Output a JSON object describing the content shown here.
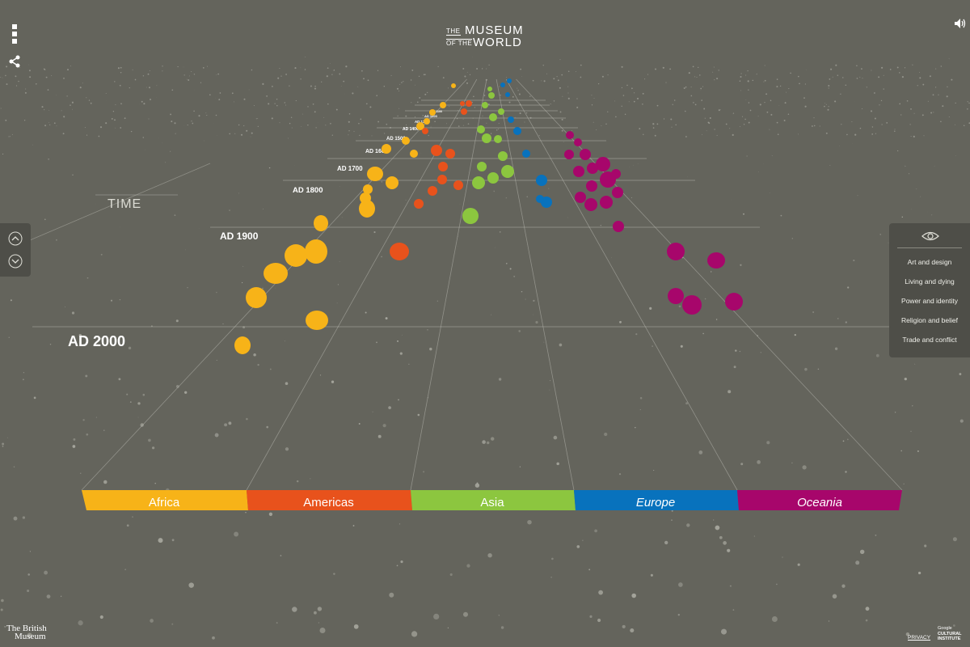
{
  "header": {
    "logo": {
      "the1": "THE",
      "line1": "MUSEUM",
      "the2": "OF THE",
      "line2": "WORLD"
    }
  },
  "controls": {
    "menu_icon": "menu-dots-icon",
    "share_icon": "share-icon",
    "sound_icon": "speaker-icon",
    "time_up_icon": "chevron-up-icon",
    "time_down_icon": "chevron-down-icon"
  },
  "timeline": {
    "axis_label": "TIME",
    "year_labels": [
      {
        "label": "AD 2000",
        "year": 2000
      },
      {
        "label": "AD 1900",
        "year": 1900
      },
      {
        "label": "AD 1800",
        "year": 1800
      },
      {
        "label": "AD 1700",
        "year": 1700
      },
      {
        "label": "AD 1600",
        "year": 1600
      },
      {
        "label": "AD 1500",
        "year": 1500
      },
      {
        "label": "AD 1400",
        "year": 1400
      },
      {
        "label": "AD 1300",
        "year": 1300
      },
      {
        "label": "AD 1200",
        "year": 1200
      },
      {
        "label": "AD 1100",
        "year": 1100
      }
    ]
  },
  "regions": [
    {
      "name": "Africa",
      "color": "#f7b318",
      "italic": false
    },
    {
      "name": "Americas",
      "color": "#e8521c",
      "italic": false
    },
    {
      "name": "Asia",
      "color": "#8cc63f",
      "italic": false
    },
    {
      "name": "Europe",
      "color": "#0872bd",
      "italic": true
    },
    {
      "name": "Oceania",
      "color": "#a7066b",
      "italic": true
    }
  ],
  "filters": {
    "eye_icon": "eye-icon",
    "items": [
      "Art and design",
      "Living and dying",
      "Power and identity",
      "Religion and belief",
      "Trade and conflict"
    ]
  },
  "footer": {
    "bm_line1": "The British",
    "bm_line2": "Museum",
    "privacy": "PRIVACY",
    "gci_line1": "Google",
    "gci_line2": "CULTURAL",
    "gci_line3": "INSTITUTE"
  }
}
